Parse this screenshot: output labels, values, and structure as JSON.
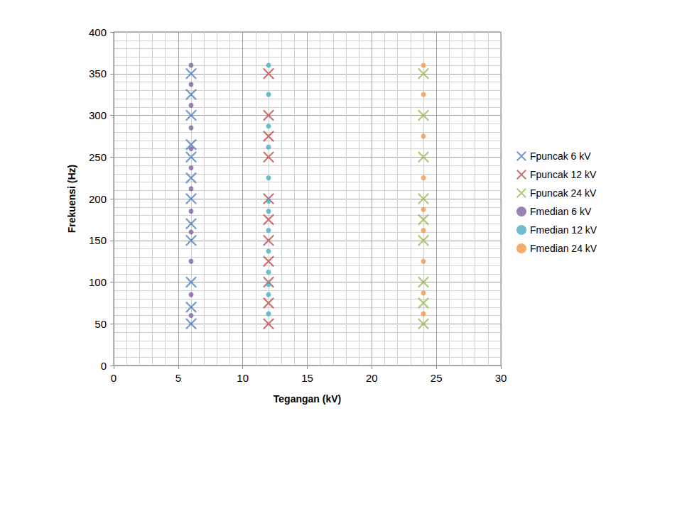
{
  "chart_data": {
    "type": "scatter",
    "x_label": "Tegangan (kV)",
    "y_label": "Frekuensi (Hz)",
    "xlim": [
      0,
      30
    ],
    "xticks": [
      0,
      5,
      10,
      15,
      20,
      25,
      30
    ],
    "ylim": [
      0,
      400
    ],
    "yticks": [
      0,
      50,
      100,
      150,
      200,
      250,
      300,
      350,
      400
    ],
    "grid": true,
    "legend": "right",
    "series": [
      {
        "name": "Fpuncak 6 kV",
        "color": "#4f81bd",
        "marker": "x",
        "x": [
          6,
          6,
          6,
          6,
          6,
          6,
          6,
          6,
          6,
          6,
          6,
          6
        ],
        "values": [
          50,
          70,
          100,
          150,
          170,
          200,
          225,
          250,
          265,
          300,
          325,
          350
        ]
      },
      {
        "name": "Fpuncak 12 kV",
        "color": "#c0504d",
        "marker": "x",
        "x": [
          12,
          12,
          12,
          12,
          12,
          12,
          12,
          12,
          12,
          12,
          12
        ],
        "values": [
          50,
          75,
          100,
          125,
          150,
          175,
          200,
          250,
          275,
          300,
          350
        ]
      },
      {
        "name": "Fpuncak 24 kV",
        "color": "#9bbb59",
        "marker": "x",
        "x": [
          24,
          24,
          24,
          24,
          24,
          24,
          24,
          24,
          24
        ],
        "values": [
          50,
          75,
          100,
          150,
          175,
          200,
          250,
          300,
          350
        ]
      },
      {
        "name": "Fmedian 6 kV",
        "color": "#8064a2",
        "marker": "circle",
        "x": [
          6,
          6,
          6,
          6,
          6,
          6,
          6,
          6,
          6,
          6,
          6,
          6
        ],
        "values": [
          60,
          85,
          125,
          160,
          185,
          212,
          237,
          260,
          285,
          312,
          337,
          360
        ]
      },
      {
        "name": "Fmedian 12 kV",
        "color": "#4bacc6",
        "marker": "circle",
        "x": [
          12,
          12,
          12,
          12,
          12,
          12,
          12,
          12,
          12,
          12,
          12,
          12,
          12
        ],
        "values": [
          62,
          85,
          97,
          112,
          137,
          162,
          185,
          197,
          225,
          262,
          287,
          325,
          360
        ]
      },
      {
        "name": "Fmedian 24 kV",
        "color": "#f79646",
        "marker": "circle",
        "x": [
          24,
          24,
          24,
          24,
          24,
          24,
          24,
          24,
          24
        ],
        "values": [
          62,
          87,
          125,
          162,
          187,
          225,
          275,
          325,
          360
        ]
      }
    ]
  }
}
